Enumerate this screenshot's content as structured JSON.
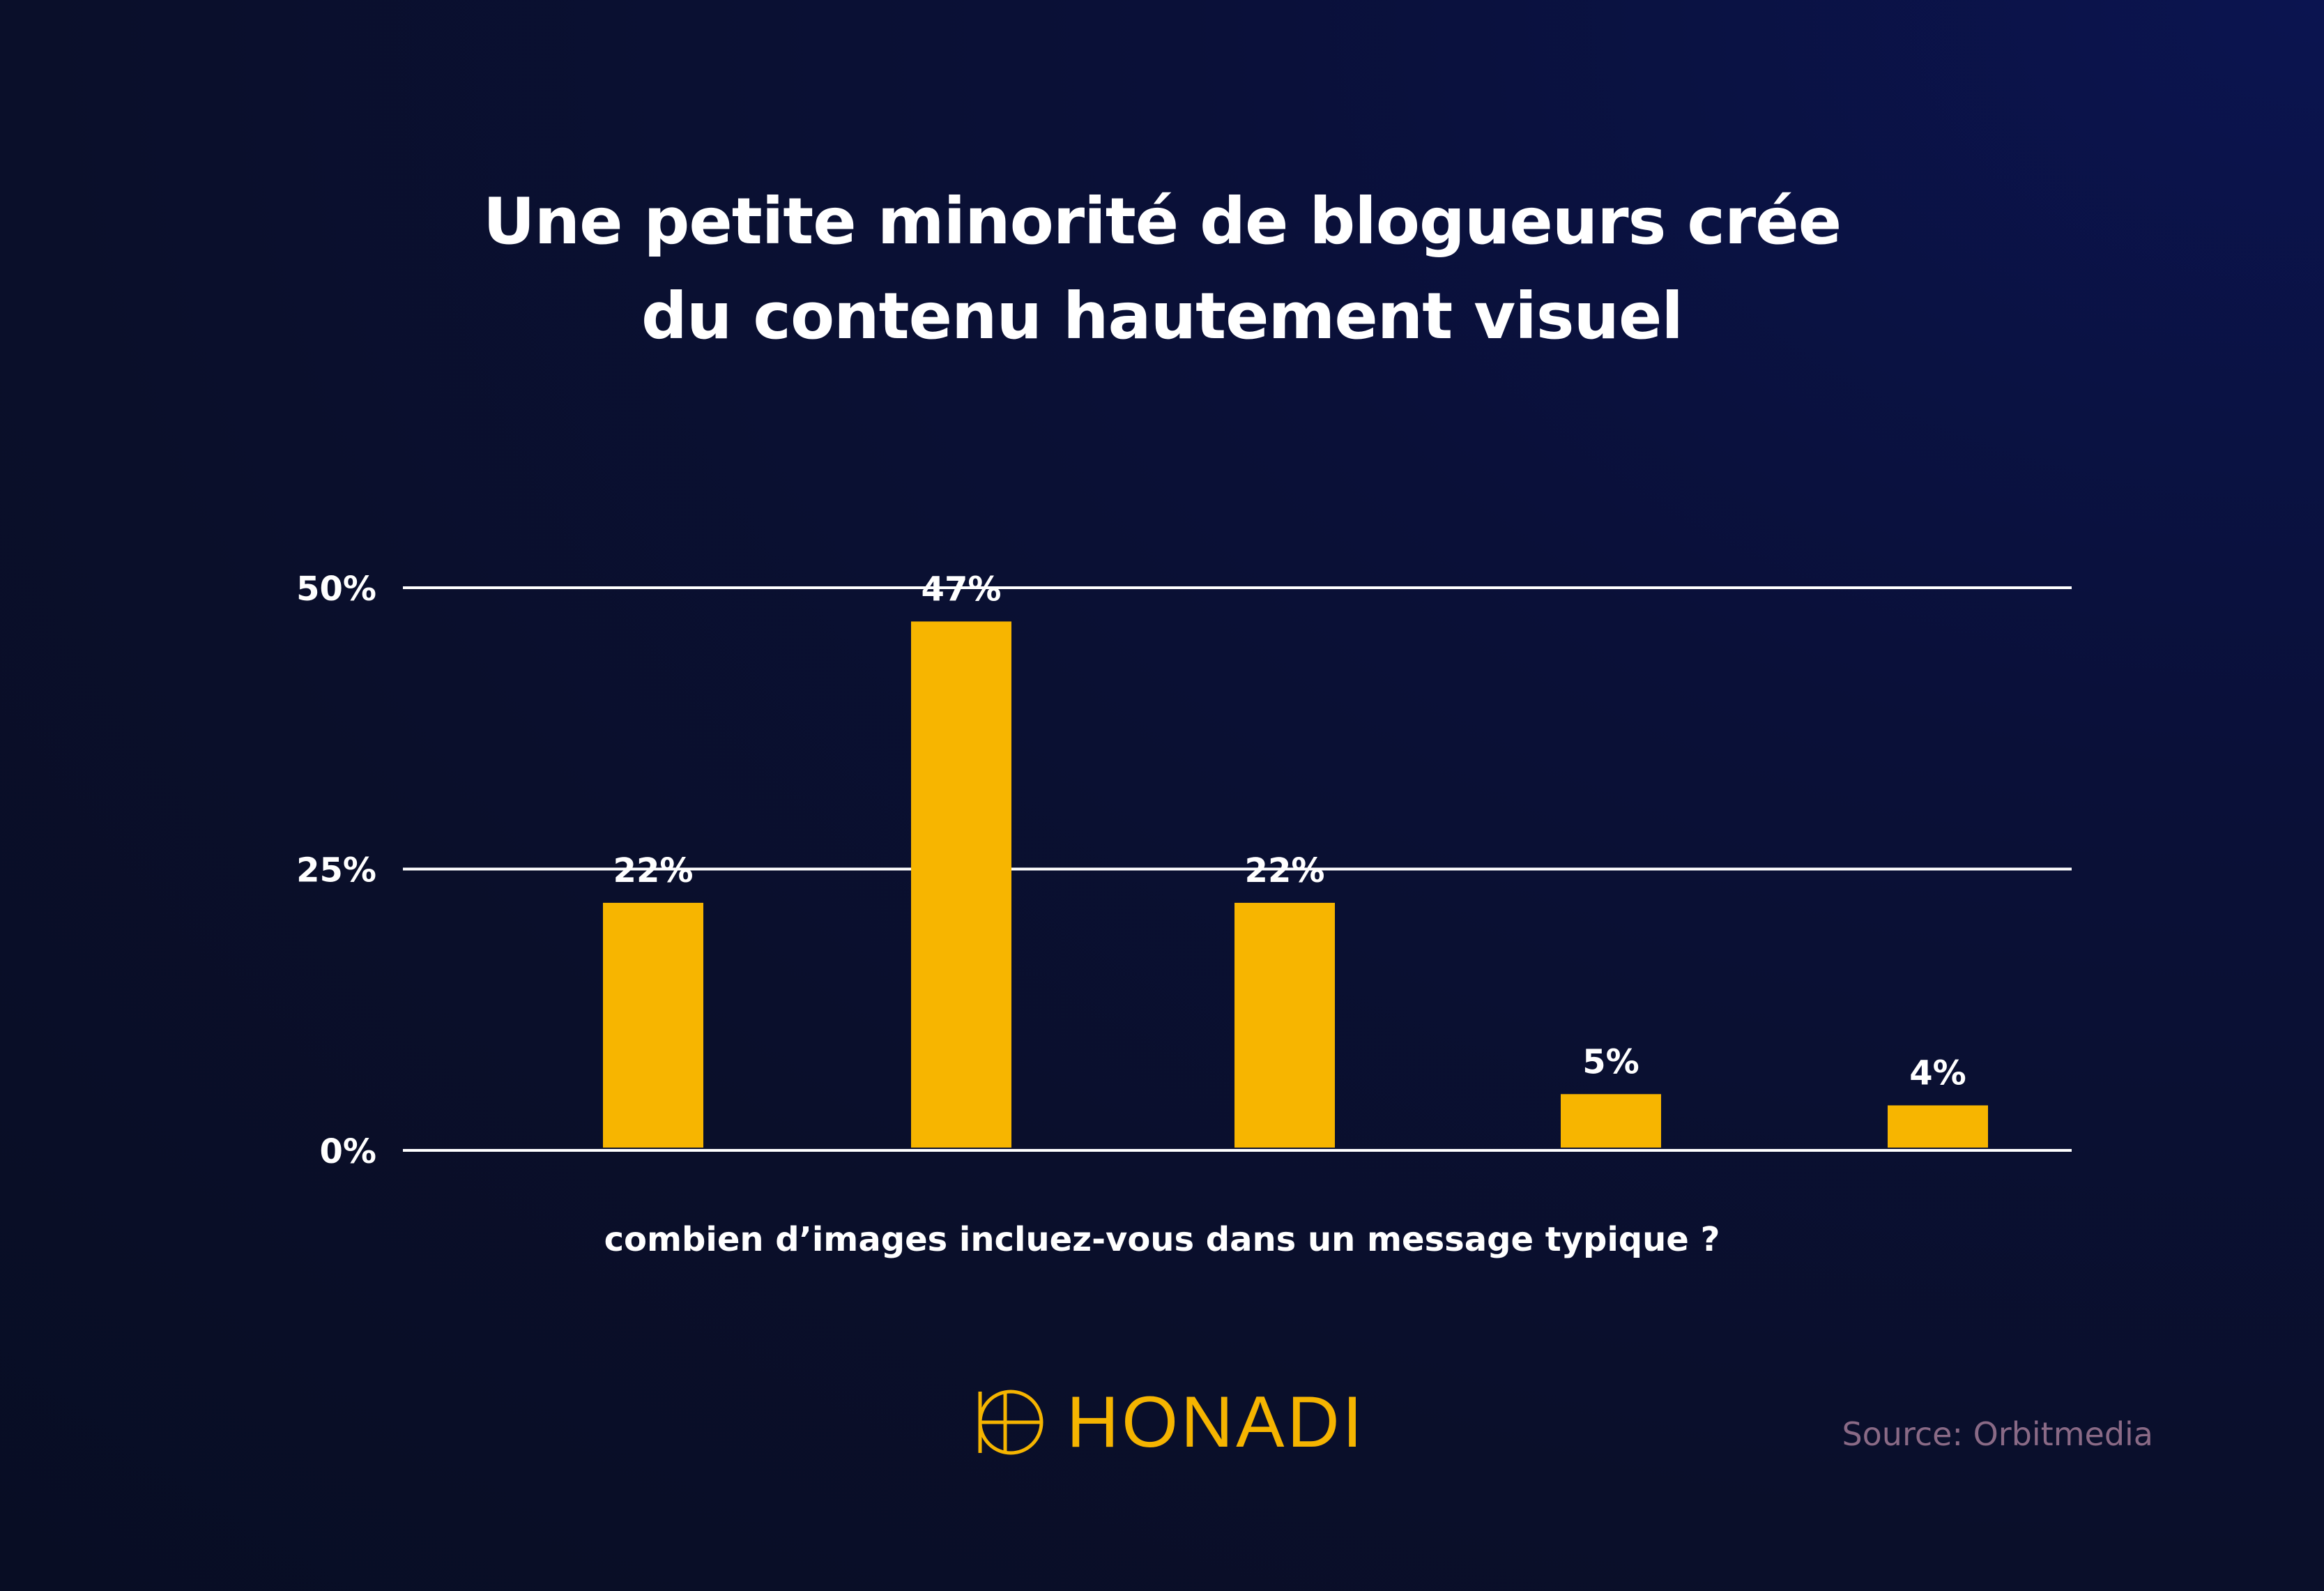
{
  "chart_data": {
    "type": "bar",
    "title_lines": [
      "Une petite minorité de blogueurs crée",
      "du contenu hautement visuel"
    ],
    "xlabel": "combien d’images incluez-vous dans un message typique ?",
    "categories": [
      "",
      "",
      "",
      "",
      ""
    ],
    "values": [
      22,
      47,
      22,
      5,
      4
    ],
    "value_labels": [
      "22%",
      "47%",
      "22%",
      "5%",
      "4%"
    ],
    "yticks": [
      0,
      25,
      50
    ],
    "ytick_labels": [
      "0%",
      "25%",
      "50%"
    ],
    "ylim": [
      0,
      50
    ],
    "grid": true,
    "bar_color": "#f7b500",
    "grid_color": "#ffffff"
  },
  "brand": {
    "logo_text": "HONADI",
    "logo_icon": "honadi-logo-icon",
    "color": "#f5b400"
  },
  "source": "Source: Orbitmedia"
}
